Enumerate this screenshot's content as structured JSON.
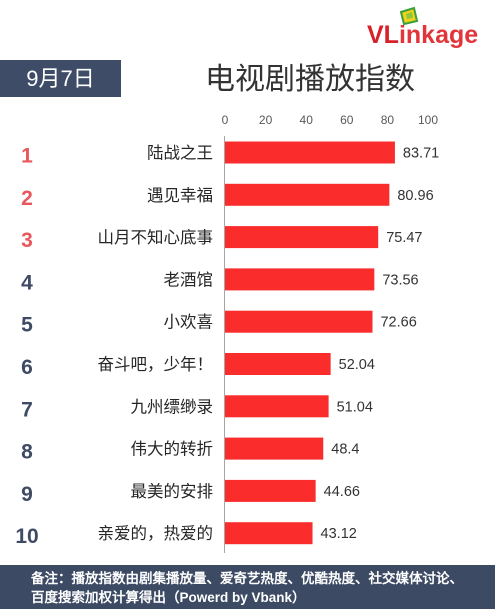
{
  "logo": {
    "text_a": "VL",
    "text_b": "inkage",
    "icon": "vlinkage-logo-icon"
  },
  "date_label": "9月7日",
  "footer": {
    "lines": [
      "备注：播放指数由剧集播放量、爱奇艺热度、优酷热度、社交媒体讨论、",
      "百度搜索加权计算得出（Powerd by Vbank）"
    ]
  },
  "colors": {
    "bar": "#fb2c2c",
    "header_bg": "#3e4c67",
    "footer_bg": "#3c4a64",
    "logo_red": "#d6202a"
  },
  "chart_data": {
    "type": "bar",
    "orientation": "horizontal",
    "title": "电视剧播放指数",
    "xlabel": "",
    "ylabel": "",
    "xlim": [
      0,
      100
    ],
    "xticks": [
      0,
      20,
      40,
      60,
      80,
      100
    ],
    "grid": false,
    "ranks": [
      "1",
      "2",
      "3",
      "4",
      "5",
      "6",
      "7",
      "8",
      "9",
      "10"
    ],
    "rank_colors": [
      "#e8575c",
      "#e8575c",
      "#e8575c",
      "#3f4a64",
      "#3f4a64",
      "#3f4a64",
      "#3f4a64",
      "#3f4a64",
      "#3f4a64",
      "#3f4a64"
    ],
    "categories": [
      "陆战之王",
      "遇见幸福",
      "山月不知心底事",
      "老酒馆",
      "小欢喜",
      "奋斗吧，少年！",
      "九州缥缈录",
      "伟大的转折",
      "最美的安排",
      "亲爱的，热爱的"
    ],
    "values": [
      83.71,
      80.96,
      75.47,
      73.56,
      72.66,
      52.04,
      51.04,
      48.4,
      44.66,
      43.12
    ]
  }
}
